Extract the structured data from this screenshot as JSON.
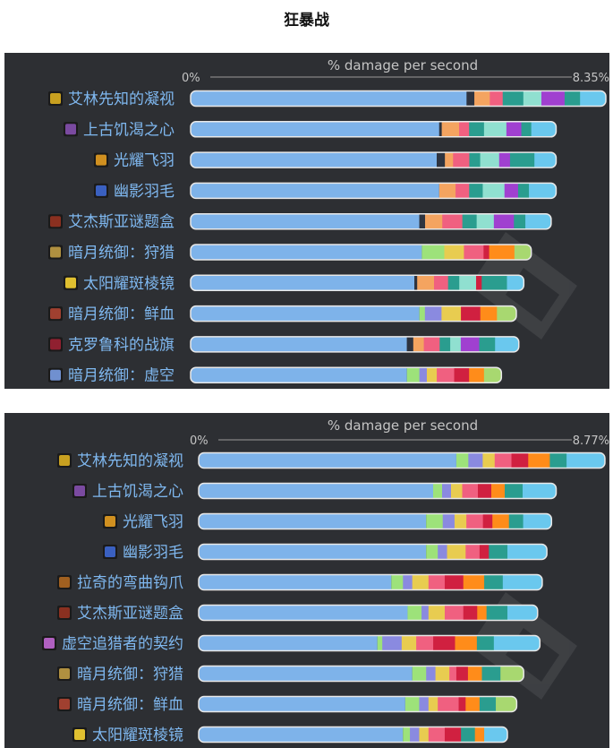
{
  "page": {
    "title": "狂暴战"
  },
  "chart_data": [
    {
      "type": "bar",
      "stacked": true,
      "orientation": "horizontal",
      "xlabel": "% damage per second",
      "tick_min": "0%",
      "tick_max": "8.35%",
      "xlim": [
        0,
        8.35
      ],
      "base_color": "#7eb3ea",
      "categories": [
        "艾林先知的凝视",
        "上古饥渴之心",
        "光耀飞羽",
        "幽影羽毛",
        "艾杰斯亚谜题盒",
        "暗月统御：狩猎",
        "太阳耀斑棱镜",
        "暗月统御：鲜血",
        "克罗鲁科的战旗",
        "暗月统御：虚空"
      ],
      "icon_colors": [
        "#c8a020",
        "#7a4aa0",
        "#d09020",
        "#3a60c0",
        "#8a3020",
        "#b09040",
        "#e0c030",
        "#a04030",
        "#902030",
        "#7090d0"
      ],
      "totals": [
        8.35,
        7.35,
        7.35,
        7.35,
        7.25,
        6.85,
        6.7,
        6.55,
        6.6,
        6.25
      ],
      "bases": [
        5.55,
        5.0,
        4.95,
        5.0,
        4.6,
        4.65,
        4.5,
        4.6,
        4.35,
        4.35
      ],
      "segments": [
        [
          [
            "#2e3440",
            0.15
          ],
          [
            "#f4a460",
            0.3
          ],
          [
            "#f06080",
            0.25
          ],
          [
            "#2a9d8f",
            0.4
          ],
          [
            "#90e0d0",
            0.35
          ],
          [
            "#a040d0",
            0.45
          ],
          [
            "#2a9d8f",
            0.3
          ],
          [
            "#6ac8ee",
            0.5
          ]
        ],
        [
          [
            "#2e3440",
            0.05
          ],
          [
            "#f4a460",
            0.35
          ],
          [
            "#f06080",
            0.2
          ],
          [
            "#2a9d8f",
            0.3
          ],
          [
            "#90e0d0",
            0.45
          ],
          [
            "#a040d0",
            0.3
          ],
          [
            "#2a9d8f",
            0.2
          ],
          [
            "#6ac8ee",
            0.5
          ]
        ],
        [
          [
            "#2e3440",
            0.15
          ],
          [
            "#f4a460",
            0.15
          ],
          [
            "#f06080",
            0.3
          ],
          [
            "#2a9d8f",
            0.2
          ],
          [
            "#90e0d0",
            0.35
          ],
          [
            "#a040d0",
            0.2
          ],
          [
            "#2a9d8f",
            0.45
          ],
          [
            "#6ac8ee",
            0.4
          ]
        ],
        [
          [
            "#f4a460",
            0.3
          ],
          [
            "#f06080",
            0.25
          ],
          [
            "#2a9d8f",
            0.25
          ],
          [
            "#90e0d0",
            0.4
          ],
          [
            "#a040d0",
            0.25
          ],
          [
            "#2a9d8f",
            0.2
          ],
          [
            "#6ac8ee",
            0.5
          ]
        ],
        [
          [
            "#2e3440",
            0.1
          ],
          [
            "#f4a460",
            0.3
          ],
          [
            "#f06080",
            0.35
          ],
          [
            "#2a9d8f",
            0.25
          ],
          [
            "#90e0d0",
            0.3
          ],
          [
            "#a040d0",
            0.35
          ],
          [
            "#2a9d8f",
            0.2
          ],
          [
            "#6ac8ee",
            0.45
          ]
        ],
        [
          [
            "#9de27a",
            0.4
          ],
          [
            "#e8cc50",
            0.35
          ],
          [
            "#f06080",
            0.35
          ],
          [
            "#d02040",
            0.1
          ],
          [
            "#ff8c1a",
            0.45
          ],
          [
            "#a8d870",
            0.3
          ]
        ],
        [
          [
            "#2e3440",
            0.05
          ],
          [
            "#f4a460",
            0.3
          ],
          [
            "#f06080",
            0.25
          ],
          [
            "#2a9d8f",
            0.2
          ],
          [
            "#90e0d0",
            0.3
          ],
          [
            "#d02040",
            0.1
          ],
          [
            "#2a9d8f",
            0.45
          ],
          [
            "#6ac8ee",
            0.3
          ]
        ],
        [
          [
            "#9de27a",
            0.1
          ],
          [
            "#8a8ae0",
            0.3
          ],
          [
            "#e8cc50",
            0.35
          ],
          [
            "#d02040",
            0.35
          ],
          [
            "#ff8c1a",
            0.3
          ],
          [
            "#a8d870",
            0.35
          ]
        ],
        [
          [
            "#2e3440",
            0.12
          ],
          [
            "#f4a460",
            0.2
          ],
          [
            "#f06080",
            0.3
          ],
          [
            "#2a9d8f",
            0.2
          ],
          [
            "#90e0d0",
            0.2
          ],
          [
            "#a040d0",
            0.35
          ],
          [
            "#2a9d8f",
            0.3
          ],
          [
            "#6ac8ee",
            0.45
          ]
        ],
        [
          [
            "#9de27a",
            0.25
          ],
          [
            "#8a8ae0",
            0.15
          ],
          [
            "#e8cc50",
            0.2
          ],
          [
            "#f06080",
            0.35
          ],
          [
            "#d02040",
            0.3
          ],
          [
            "#ff8c1a",
            0.3
          ],
          [
            "#a8d870",
            0.35
          ]
        ]
      ]
    },
    {
      "type": "bar",
      "stacked": true,
      "orientation": "horizontal",
      "xlabel": "% damage per second",
      "tick_min": "0%",
      "tick_max": "8.77%",
      "xlim": [
        0,
        8.77
      ],
      "base_color": "#7eb3ea",
      "categories": [
        "艾林先知的凝视",
        "上古饥渴之心",
        "光耀飞羽",
        "幽影羽毛",
        "拉奇的弯曲钩爪",
        "艾杰斯亚谜题盒",
        "虚空追猎者的契约",
        "暗月统御：狩猎",
        "暗月统御：鲜血",
        "太阳耀斑棱镜"
      ],
      "icon_colors": [
        "#c8a020",
        "#7a4aa0",
        "#d09020",
        "#3a60c0",
        "#a06020",
        "#8a3020",
        "#b060c0",
        "#b09040",
        "#a04030",
        "#e0c030"
      ],
      "totals": [
        8.75,
        7.7,
        7.6,
        7.5,
        7.4,
        7.3,
        7.35,
        7.0,
        6.85,
        6.65
      ],
      "bases": [
        5.55,
        5.05,
        4.9,
        4.9,
        4.15,
        4.5,
        3.85,
        4.6,
        4.45,
        4.4
      ],
      "segments": [
        [
          [
            "#9de27a",
            0.25
          ],
          [
            "#8a8ae0",
            0.3
          ],
          [
            "#e8cc50",
            0.25
          ],
          [
            "#f06080",
            0.35
          ],
          [
            "#d02040",
            0.35
          ],
          [
            "#ff8c1a",
            0.45
          ],
          [
            "#2a9d8f",
            0.35
          ],
          [
            "#6ac8ee",
            0.8
          ]
        ],
        [
          [
            "#9de27a",
            0.2
          ],
          [
            "#8a8ae0",
            0.2
          ],
          [
            "#e8cc50",
            0.25
          ],
          [
            "#f06080",
            0.35
          ],
          [
            "#d02040",
            0.3
          ],
          [
            "#ff8c1a",
            0.3
          ],
          [
            "#2a9d8f",
            0.4
          ],
          [
            "#6ac8ee",
            0.75
          ]
        ],
        [
          [
            "#9de27a",
            0.35
          ],
          [
            "#8a8ae0",
            0.25
          ],
          [
            "#e8cc50",
            0.25
          ],
          [
            "#f06080",
            0.35
          ],
          [
            "#d02040",
            0.2
          ],
          [
            "#ff8c1a",
            0.35
          ],
          [
            "#2a9d8f",
            0.3
          ],
          [
            "#6ac8ee",
            0.6
          ]
        ],
        [
          [
            "#9de27a",
            0.25
          ],
          [
            "#8a8ae0",
            0.2
          ],
          [
            "#e8cc50",
            0.4
          ],
          [
            "#f06080",
            0.3
          ],
          [
            "#d02040",
            0.2
          ],
          [
            "#2a9d8f",
            0.4
          ],
          [
            "#6ac8ee",
            0.85
          ]
        ],
        [
          [
            "#9de27a",
            0.25
          ],
          [
            "#8a8ae0",
            0.2
          ],
          [
            "#e8cc50",
            0.35
          ],
          [
            "#f06080",
            0.35
          ],
          [
            "#d02040",
            0.4
          ],
          [
            "#ff8c1a",
            0.45
          ],
          [
            "#2a9d8f",
            0.4
          ],
          [
            "#6ac8ee",
            0.85
          ]
        ],
        [
          [
            "#9de27a",
            0.3
          ],
          [
            "#8a8ae0",
            0.15
          ],
          [
            "#e8cc50",
            0.35
          ],
          [
            "#f06080",
            0.4
          ],
          [
            "#d02040",
            0.3
          ],
          [
            "#ff8c1a",
            0.2
          ],
          [
            "#2a9d8f",
            0.45
          ],
          [
            "#6ac8ee",
            0.65
          ]
        ],
        [
          [
            "#9de27a",
            0.1
          ],
          [
            "#8a8ae0",
            0.4
          ],
          [
            "#e8cc50",
            0.3
          ],
          [
            "#f06080",
            0.35
          ],
          [
            "#d02040",
            0.45
          ],
          [
            "#ff8c1a",
            0.45
          ],
          [
            "#2a9d8f",
            0.35
          ],
          [
            "#6ac8ee",
            0.95
          ]
        ],
        [
          [
            "#9de27a",
            0.3
          ],
          [
            "#8a8ae0",
            0.2
          ],
          [
            "#e8cc50",
            0.3
          ],
          [
            "#f06080",
            0.15
          ],
          [
            "#d02040",
            0.25
          ],
          [
            "#ff8c1a",
            0.3
          ],
          [
            "#2a9d8f",
            0.4
          ],
          [
            "#a8d870",
            0.5
          ]
        ],
        [
          [
            "#9de27a",
            0.3
          ],
          [
            "#8a8ae0",
            0.2
          ],
          [
            "#e8cc50",
            0.2
          ],
          [
            "#f06080",
            0.45
          ],
          [
            "#d02040",
            0.15
          ],
          [
            "#ff8c1a",
            0.3
          ],
          [
            "#2a9d8f",
            0.35
          ],
          [
            "#a8d870",
            0.45
          ]
        ],
        [
          [
            "#9de27a",
            0.15
          ],
          [
            "#8a8ae0",
            0.2
          ],
          [
            "#e8cc50",
            0.2
          ],
          [
            "#f06080",
            0.35
          ],
          [
            "#d02040",
            0.35
          ],
          [
            "#2a9d8f",
            0.3
          ],
          [
            "#ff8c1a",
            0.2
          ],
          [
            "#6ac8ee",
            0.5
          ]
        ]
      ]
    }
  ]
}
